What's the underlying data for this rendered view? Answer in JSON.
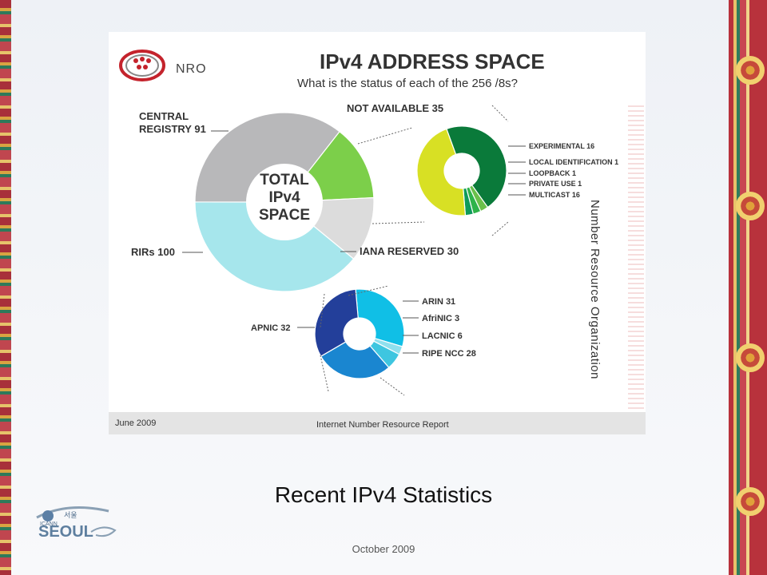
{
  "slide": {
    "title": "Recent IPv4 Statistics",
    "date": "October 2009",
    "logo_text": "SEOUL",
    "logo_small": "ICANN",
    "logo_korean": "서울"
  },
  "report": {
    "org_short": "NRO",
    "title": "IPv4 ADDRESS SPACE",
    "subtitle": "What is the status of each of the 256 /8s?",
    "center_label": [
      "TOTAL",
      "IPv4",
      "SPACE"
    ],
    "vertical_org": "Number Resource Organization",
    "footer_date": "June 2009",
    "footer_title": "Internet Number Resource Report"
  },
  "chart_data": [
    {
      "type": "pie",
      "title": "IPv4 ADDRESS SPACE",
      "slices": [
        {
          "label": "CENTRAL REGISTRY 91",
          "value": 91,
          "color": "#b8b8ba"
        },
        {
          "label": "NOT AVAILABLE 35",
          "value": 35,
          "color": "#7ccf4a"
        },
        {
          "label": "IANA RESERVED 30",
          "value": 30,
          "color": "#dcdcdc"
        },
        {
          "label": "RIRs 100",
          "value": 100,
          "color": "#a6e6ec"
        }
      ]
    },
    {
      "type": "pie",
      "slices": [
        {
          "label": "EXPERIMENTAL 16",
          "value": 16,
          "color": "#0a7a3a"
        },
        {
          "label": "LOCAL IDENTIFICATION 1",
          "value": 1,
          "color": "#6ac04a"
        },
        {
          "label": "LOOPBACK 1",
          "value": 1,
          "color": "#2eb34a"
        },
        {
          "label": "PRIVATE USE 1",
          "value": 1,
          "color": "#0f9a5a"
        },
        {
          "label": "MULTICAST 16",
          "value": 16,
          "color": "#d8e024"
        }
      ]
    },
    {
      "type": "pie",
      "slices": [
        {
          "label": "ARIN 31",
          "value": 31,
          "color": "#10bfe6"
        },
        {
          "label": "AfriNIC 3",
          "value": 3,
          "color": "#8fe0ee"
        },
        {
          "label": "LACNIC 6",
          "value": 6,
          "color": "#3ec6e0"
        },
        {
          "label": "RIPE NCC 28",
          "value": 28,
          "color": "#1a86d0"
        },
        {
          "label": "APNIC 32",
          "value": 32,
          "color": "#233f9a"
        }
      ]
    }
  ]
}
